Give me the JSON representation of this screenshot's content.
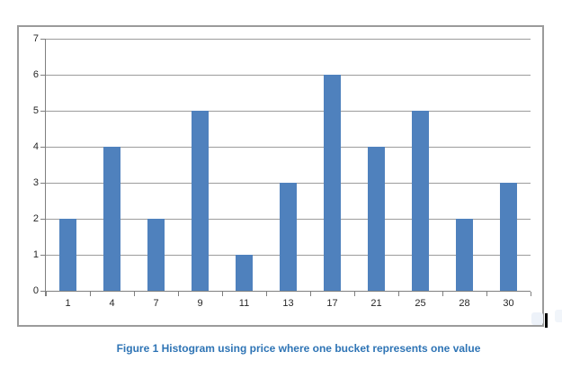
{
  "caption": {
    "text": "Figure 1 Histogram using price where one bucket represents one value",
    "color": "#2E74B5"
  },
  "chart_data": {
    "type": "bar",
    "categories": [
      "1",
      "4",
      "7",
      "9",
      "11",
      "13",
      "17",
      "21",
      "25",
      "28",
      "30"
    ],
    "values": [
      2,
      4,
      2,
      5,
      1,
      3,
      6,
      4,
      5,
      2,
      3
    ],
    "title": "",
    "xlabel": "",
    "ylabel": "",
    "ylim": [
      0,
      7
    ],
    "yticks": [
      0,
      1,
      2,
      3,
      4,
      5,
      6,
      7
    ],
    "grid": true,
    "legend": false,
    "bar_color": "#4F81BD",
    "gridline_color": "#9c9c9c",
    "axis_color": "#7f7f7f",
    "tick_label_color": "#262626",
    "frame_border_color": "#9b9b9b"
  }
}
